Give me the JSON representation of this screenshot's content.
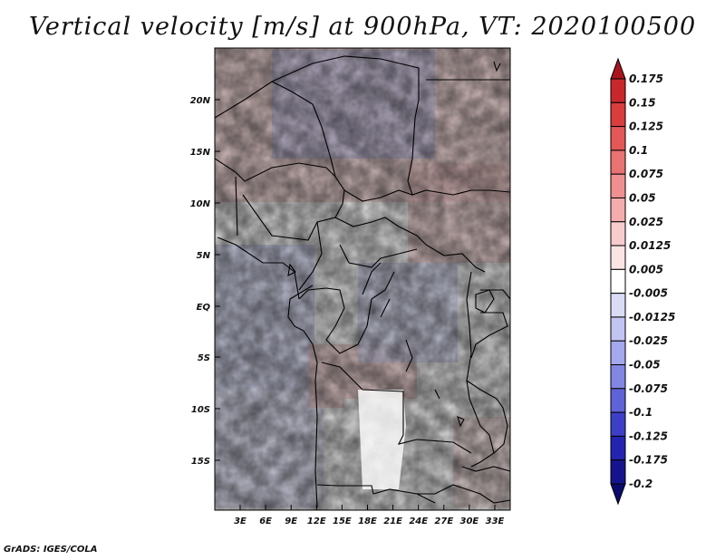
{
  "title": "Vertical velocity [m/s] at 900hPa, VT: 2020100500",
  "footer": "GrADS: IGES/COLA",
  "map": {
    "lat_labels": [
      "20N",
      "15N",
      "10N",
      "5N",
      "EQ",
      "5S",
      "10S",
      "15S"
    ],
    "lon_labels": [
      "3E",
      "6E",
      "9E",
      "12E",
      "15E",
      "18E",
      "21E",
      "24E",
      "27E",
      "30E",
      "33E"
    ]
  },
  "colorbar": {
    "labels": [
      "0.175",
      "0.15",
      "0.125",
      "0.1",
      "0.075",
      "0.05",
      "0.025",
      "0.0125",
      "0.005",
      "-0.005",
      "-0.0125",
      "-0.025",
      "-0.05",
      "-0.075",
      "-0.1",
      "-0.125",
      "-0.175",
      "-0.2"
    ],
    "colors": [
      "#a7161c",
      "#c8282c",
      "#d93d3d",
      "#e35757",
      "#e97272",
      "#ef8f8f",
      "#f4adad",
      "#f8cccc",
      "#fbe4e4",
      "#ffffff",
      "#dadcf5",
      "#c2c5f1",
      "#a4a8ec",
      "#8186e3",
      "#5e63d8",
      "#3d40c7",
      "#2424b0",
      "#15148e",
      "#0b0b6c"
    ]
  }
}
